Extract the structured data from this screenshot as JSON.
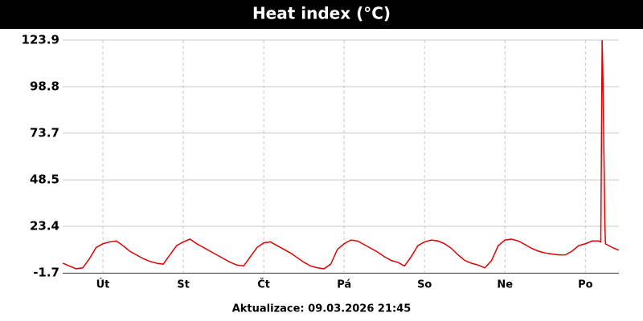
{
  "chart_data": {
    "type": "line",
    "title": "Heat index (°C)",
    "footer": "Aktualizace: 09.03.2026 21:45",
    "x": [
      0,
      2,
      4,
      6,
      8,
      10,
      12,
      14,
      16,
      18,
      20,
      22,
      24,
      26,
      28,
      30,
      32,
      34,
      36,
      38,
      40,
      42,
      44,
      46,
      48,
      50,
      52,
      54,
      56,
      58,
      60,
      62,
      64,
      66,
      68,
      70,
      72,
      74,
      76,
      78,
      80,
      82,
      84,
      86,
      88,
      90,
      92,
      94,
      96,
      98,
      100,
      102,
      104,
      106,
      108,
      110,
      112,
      114,
      116,
      118,
      120,
      122,
      124,
      126,
      128,
      130,
      132,
      134,
      136,
      138,
      140,
      142,
      144,
      146,
      148,
      150,
      152,
      154,
      156,
      158,
      160,
      160.6,
      161,
      161.2,
      161.4,
      161.6,
      161.8,
      162,
      164,
      166
    ],
    "series": [
      {
        "name": "Heat index",
        "color": "#e00000",
        "values": [
          3.5,
          2,
          0.5,
          1,
          6,
          12,
          14,
          15,
          15.5,
          13,
          10,
          8,
          6,
          4.5,
          3.5,
          3,
          8,
          13,
          15,
          16.5,
          14,
          12,
          10,
          8,
          6,
          4,
          2.5,
          2,
          7,
          12,
          14.5,
          15,
          13,
          11,
          9,
          6.5,
          4,
          2,
          1,
          0.5,
          3,
          11,
          14,
          16,
          15.5,
          13.5,
          11.5,
          9.5,
          7,
          5,
          4,
          2,
          7,
          13,
          15,
          16,
          15.5,
          14,
          11.5,
          8,
          5,
          3.5,
          2.5,
          1,
          5,
          13,
          16,
          16.5,
          15.5,
          13.5,
          11.5,
          10,
          9,
          8.5,
          8,
          8,
          10,
          13,
          14,
          15.5,
          15.5,
          15,
          123.9,
          108,
          80,
          55,
          25,
          14,
          12,
          10.5
        ]
      }
    ],
    "xlim": [
      0,
      166
    ],
    "xticks": [
      {
        "value": 12,
        "label": "Út"
      },
      {
        "value": 36,
        "label": "St"
      },
      {
        "value": 60,
        "label": "Čt"
      },
      {
        "value": 84,
        "label": "Pá"
      },
      {
        "value": 108,
        "label": "So"
      },
      {
        "value": 132,
        "label": "Ne"
      },
      {
        "value": 156,
        "label": "Po"
      }
    ],
    "ylim": [
      -1.7,
      123.9
    ],
    "yticks": [
      -1.7,
      23.4,
      48.5,
      73.7,
      98.8,
      123.9
    ],
    "grid": true
  }
}
